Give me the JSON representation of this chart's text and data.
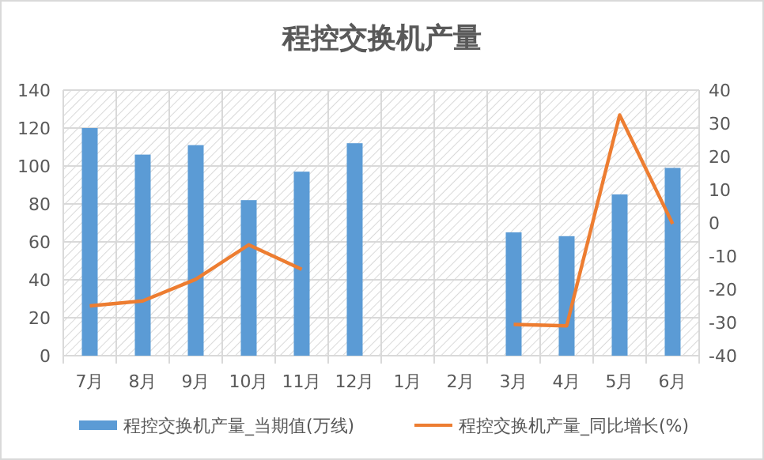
{
  "chart_data": {
    "type": "bar",
    "title": "程控交换机产量",
    "categories": [
      "7月",
      "8月",
      "9月",
      "10月",
      "11月",
      "12月",
      "1月",
      "2月",
      "3月",
      "4月",
      "5月",
      "6月"
    ],
    "series": [
      {
        "name": "程控交换机产量_当期值(万线)",
        "color": "#5b9bd5",
        "values": [
          120,
          106,
          111,
          82,
          97,
          112,
          null,
          null,
          65,
          63,
          85,
          99
        ]
      },
      {
        "name": "程控交换机产量_同比增长(%)",
        "type": "line",
        "axis": "y2",
        "color": "#ed7d31",
        "values": [
          -25,
          -23.5,
          -17,
          -6.6,
          -14,
          null,
          null,
          null,
          -30.6,
          -31,
          32.5,
          -0.3
        ]
      }
    ],
    "ylim": [
      0,
      140
    ],
    "yticks": [
      0,
      20,
      40,
      60,
      80,
      100,
      120,
      140
    ],
    "y2lim": [
      -40,
      40
    ],
    "y2ticks": [
      -40,
      -30,
      -20,
      -10,
      0,
      10,
      20,
      30,
      40
    ],
    "grid": true,
    "legend": "bottom"
  }
}
